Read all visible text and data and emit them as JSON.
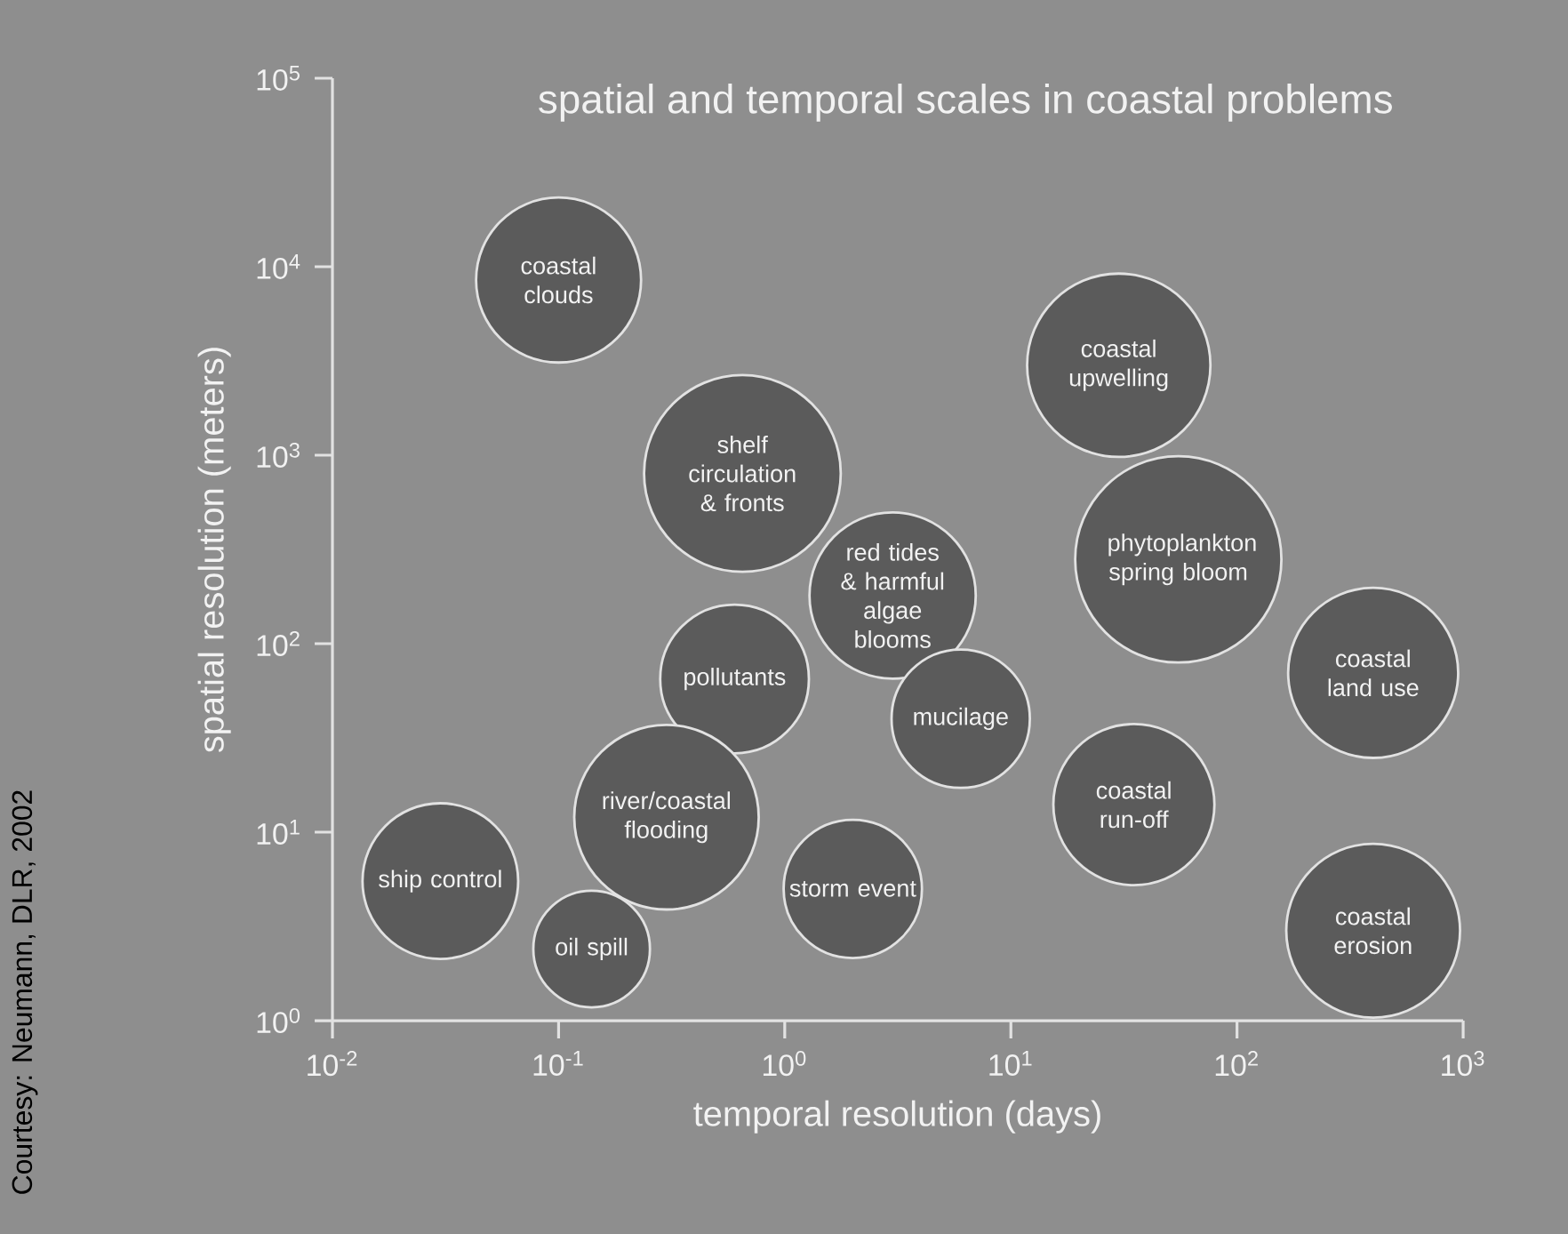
{
  "chart_data": {
    "type": "bubble",
    "title": "spatial and temporal scales in coastal problems",
    "xlabel": "temporal resolution (days)",
    "ylabel": "spatial resolution (meters)",
    "x": [
      0.1,
      30,
      0.65,
      55,
      3,
      400,
      0.6,
      6,
      0.3,
      35,
      0.03,
      0.14,
      2,
      400
    ],
    "values": [
      8500,
      3000,
      800,
      280,
      180,
      70,
      65,
      40,
      12,
      14,
      5.5,
      2.4,
      5,
      3
    ],
    "sizes": [
      0.64,
      0.79,
      0.91,
      1,
      0.65,
      0.68,
      0.52,
      0.45,
      0.8,
      0.61,
      0.57,
      0.32,
      0.45,
      0.71
    ],
    "color": "#5b5b5b",
    "marker": "circle",
    "log": "xy",
    "xlim": [
      0.01,
      1000
    ],
    "ylim": [
      1,
      100000
    ],
    "xticks": [
      {
        "value": 0.01,
        "label": "10$^{-2}$"
      },
      {
        "value": 0.1,
        "label": "10$^{-1}$"
      },
      {
        "value": 1,
        "label": "10$^{0}$"
      },
      {
        "value": 10,
        "label": "10$^{1}$"
      },
      {
        "value": 100,
        "label": "10$^{2}$"
      },
      {
        "value": 1000,
        "label": "10$^{3}$"
      }
    ],
    "yticks": [
      {
        "value": 1,
        "label": "10$^{0}$"
      },
      {
        "value": 10,
        "label": "10$^{1}$"
      },
      {
        "value": 100,
        "label": "10$^{2}$"
      },
      {
        "value": 1000,
        "label": "10$^{3}$"
      },
      {
        "value": 10000,
        "label": "10$^{4}$"
      },
      {
        "value": 100000,
        "label": "10$^{5}$"
      }
    ],
    "annotations": [
      {
        "text": "coastal clouds",
        "x": 0.1,
        "y": 8500
      },
      {
        "text": "coastal upwelling",
        "x": 30,
        "y": 3000
      },
      {
        "text": "shelf circulation & fronts",
        "x": 0.65,
        "y": 800
      },
      {
        "text": "phytoplankton spring bloom",
        "x": 55,
        "y": 280
      },
      {
        "text": "red tides & harmful algae blooms",
        "x": 3,
        "y": 180
      },
      {
        "text": "coastal land use",
        "x": 400,
        "y": 70
      },
      {
        "text": "pollutants",
        "x": 0.6,
        "y": 65
      },
      {
        "text": "mucilage",
        "x": 6,
        "y": 40
      },
      {
        "text": "river/coastal flooding",
        "x": 0.3,
        "y": 12
      },
      {
        "text": "coastal run-off",
        "x": 35,
        "y": 14
      },
      {
        "text": "ship control",
        "x": 0.03,
        "y": 5.5
      },
      {
        "text": "oil spill",
        "x": 0.14,
        "y": 2.4
      },
      {
        "text": "storm event",
        "x": 2,
        "y": 5
      },
      {
        "text": "coastal erosion",
        "x": 400,
        "y": 3
      },
      "Courtesy: Neumann, DLR, 2002"
    ]
  }
}
